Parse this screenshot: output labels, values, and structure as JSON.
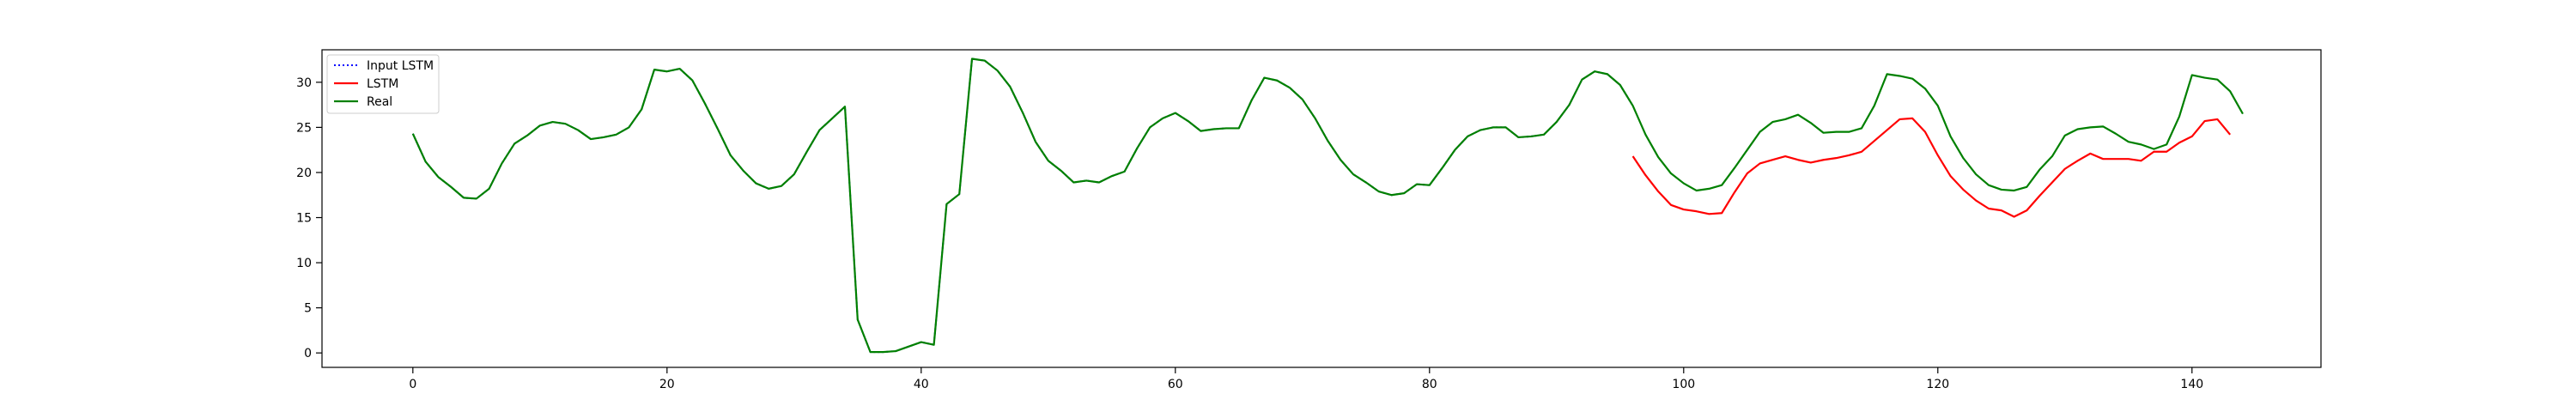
{
  "chart_data": {
    "type": "line",
    "title": "",
    "xlabel": "",
    "ylabel": "",
    "xlim": [
      -7.15,
      150.15
    ],
    "ylim": [
      -1.6,
      33.6
    ],
    "xticks": [
      0,
      20,
      40,
      60,
      80,
      100,
      120,
      140
    ],
    "yticks": [
      0,
      5,
      10,
      15,
      20,
      25,
      30
    ],
    "grid": false,
    "legend": {
      "position": "top-left",
      "entries": [
        {
          "name": "Input LSTM",
          "color": "#0000ff",
          "style": "dotted"
        },
        {
          "name": "LSTM",
          "color": "#ff0000",
          "style": "solid"
        },
        {
          "name": "Real",
          "color": "#008000",
          "style": "solid"
        }
      ]
    },
    "series": [
      {
        "name": "Input LSTM",
        "color": "#0000ff",
        "style": "dotted",
        "x_start": 0,
        "values": [
          24.3,
          21.2,
          19.5,
          18.4,
          17.2,
          17.1,
          18.2,
          21.0,
          23.2,
          24.1,
          25.2,
          25.6,
          25.4,
          24.7,
          23.7,
          23.9,
          24.2,
          25.0,
          27.0,
          31.4,
          31.2,
          31.5,
          30.2,
          27.6,
          24.8,
          21.9,
          20.2,
          18.8,
          18.2,
          18.5,
          19.8,
          22.3,
          24.7,
          26.0,
          27.3,
          3.7,
          0.1,
          0.1,
          0.2,
          0.7,
          1.2,
          0.9,
          16.5,
          17.6,
          32.6,
          32.4,
          31.3,
          29.5,
          26.6,
          23.4,
          21.3,
          20.2,
          18.9,
          19.1,
          18.9,
          19.6,
          20.1,
          22.7,
          25.0,
          26.0,
          26.6,
          25.7,
          24.6,
          24.8,
          24.9,
          24.9,
          28.0,
          30.5,
          30.2,
          29.4,
          28.1,
          26.0,
          23.5,
          21.4,
          19.8,
          18.9,
          17.9,
          17.5,
          17.7,
          18.7,
          18.6,
          20.5,
          22.5,
          24.0,
          24.7,
          25.0,
          25.0,
          23.9,
          24.0,
          24.2,
          25.6,
          27.5,
          30.3,
          31.2,
          30.9,
          29.7,
          27.4
        ]
      },
      {
        "name": "LSTM",
        "color": "#ff0000",
        "style": "solid",
        "x_start": 96,
        "values": [
          21.8,
          19.7,
          17.9,
          16.4,
          15.9,
          15.7,
          15.4,
          15.5,
          17.8,
          19.9,
          21.0,
          21.4,
          21.8,
          21.4,
          21.1,
          21.4,
          21.6,
          21.9,
          22.3,
          23.5,
          24.7,
          25.9,
          26.0,
          24.5,
          21.9,
          19.6,
          18.1,
          16.9,
          16.0,
          15.8,
          15.1,
          15.8,
          17.4,
          18.9,
          20.4,
          21.3,
          22.1,
          21.5,
          21.5,
          21.5,
          21.3,
          22.3,
          22.3,
          23.3,
          24.0,
          25.7,
          25.9,
          24.2
        ]
      },
      {
        "name": "Real",
        "color": "#008000",
        "style": "solid",
        "x_start": 0,
        "values": [
          24.3,
          21.2,
          19.5,
          18.4,
          17.2,
          17.1,
          18.2,
          21.0,
          23.2,
          24.1,
          25.2,
          25.6,
          25.4,
          24.7,
          23.7,
          23.9,
          24.2,
          25.0,
          27.0,
          31.4,
          31.2,
          31.5,
          30.2,
          27.6,
          24.8,
          21.9,
          20.2,
          18.8,
          18.2,
          18.5,
          19.8,
          22.3,
          24.7,
          26.0,
          27.3,
          3.7,
          0.1,
          0.1,
          0.2,
          0.7,
          1.2,
          0.9,
          16.5,
          17.6,
          32.6,
          32.4,
          31.3,
          29.5,
          26.6,
          23.4,
          21.3,
          20.2,
          18.9,
          19.1,
          18.9,
          19.6,
          20.1,
          22.7,
          25.0,
          26.0,
          26.6,
          25.7,
          24.6,
          24.8,
          24.9,
          24.9,
          28.0,
          30.5,
          30.2,
          29.4,
          28.1,
          26.0,
          23.5,
          21.4,
          19.8,
          18.9,
          17.9,
          17.5,
          17.7,
          18.7,
          18.6,
          20.5,
          22.5,
          24.0,
          24.7,
          25.0,
          25.0,
          23.9,
          24.0,
          24.2,
          25.6,
          27.5,
          30.3,
          31.2,
          30.9,
          29.7,
          27.4,
          24.2,
          21.7,
          19.9,
          18.8,
          18.0,
          18.2,
          18.6,
          20.5,
          22.5,
          24.5,
          25.6,
          25.9,
          26.4,
          25.5,
          24.4,
          24.5,
          24.5,
          24.9,
          27.4,
          30.9,
          30.7,
          30.4,
          29.3,
          27.4,
          24.0,
          21.6,
          19.8,
          18.6,
          18.1,
          18.0,
          18.4,
          20.3,
          21.8,
          24.1,
          24.8,
          25.0,
          25.1,
          24.3,
          23.4,
          23.1,
          22.6,
          23.1,
          26.2,
          30.8,
          30.5,
          30.3,
          29.0,
          26.5
        ]
      }
    ]
  }
}
